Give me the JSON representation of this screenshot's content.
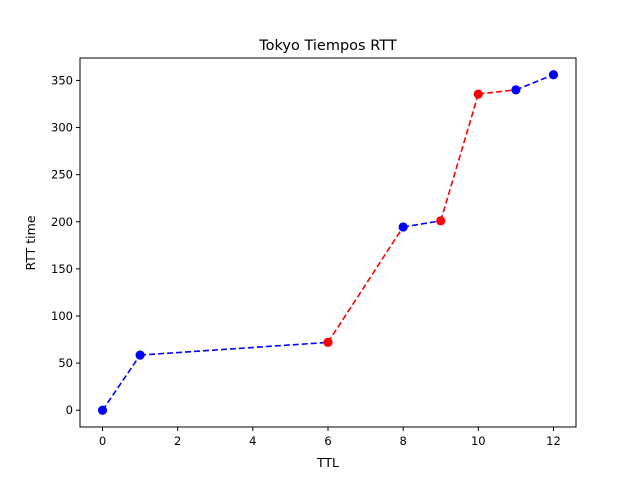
{
  "chart_data": {
    "type": "line",
    "title": "Tokyo Tiempos RTT",
    "xlabel": "TTL",
    "ylabel": "RTT time",
    "xlim": [
      -0.6,
      12.6
    ],
    "ylim": [
      -17.8,
      373.8
    ],
    "xticks": [
      0,
      2,
      4,
      6,
      8,
      10,
      12
    ],
    "yticks": [
      0,
      50,
      100,
      150,
      200,
      250,
      300,
      350
    ],
    "grid": false,
    "legend": "none",
    "x": [
      0,
      1,
      6,
      8,
      9,
      10,
      11,
      12
    ],
    "y": [
      0,
      58.5,
      72,
      194.5,
      201,
      335.5,
      340,
      356
    ],
    "point_colors": [
      "#0000ff",
      "#0000ff",
      "#ff0000",
      "#0000ff",
      "#ff0000",
      "#ff0000",
      "#0000ff",
      "#0000ff"
    ],
    "segment_colors": [
      "#0000ff",
      "#0000ff",
      "#ff0000",
      "#0000ff",
      "#ff0000",
      "#ff0000",
      "#0000ff"
    ],
    "line_style": "dashed"
  }
}
